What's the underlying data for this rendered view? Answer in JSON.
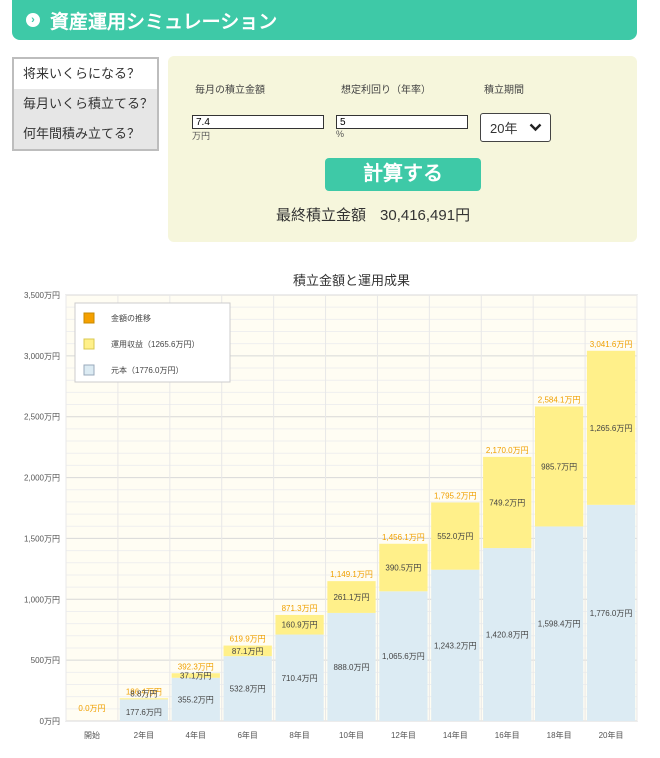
{
  "header": {
    "title": "資産運用シミュレーション"
  },
  "modes": [
    {
      "label": "将来いくらになる？",
      "active": true
    },
    {
      "label": "毎月いくら積立てる？",
      "active": false
    },
    {
      "label": "何年間積み立てる？",
      "active": false
    }
  ],
  "form": {
    "monthly_label": "毎月の積立金額",
    "monthly_value": "7.4",
    "monthly_unit": "万円",
    "rate_label": "想定利回り（年率）",
    "rate_value": "5",
    "rate_unit": "%",
    "period_label": "積立期間",
    "period_value": "20年",
    "calc_label": "計算する",
    "result_label": "最終積立金額",
    "result_value": "30,416,491円"
  },
  "colors": {
    "accent": "#3ec9a7",
    "principal": "#dcebf3",
    "gain": "#fff08a",
    "total_label": "#f0a000",
    "legend_total": "#f5a000"
  },
  "chart_data": {
    "type": "bar",
    "title": "積立金額と運用成果",
    "categories": [
      "開始",
      "2年目",
      "4年目",
      "6年目",
      "8年目",
      "10年目",
      "12年目",
      "14年目",
      "16年目",
      "18年目",
      "20年目"
    ],
    "series": [
      {
        "name": "元本（1776.0万円）",
        "values": [
          0,
          177.6,
          355.2,
          532.8,
          710.4,
          888.0,
          1065.6,
          1243.2,
          1420.8,
          1598.4,
          1776.0
        ],
        "labels": [
          "",
          "177.6万円",
          "355.2万円",
          "532.8万円",
          "710.4万円",
          "888.0万円",
          "1,065.6万円",
          "1,243.2万円",
          "1,420.8万円",
          "1,598.4万円",
          "1,776.0万円"
        ]
      },
      {
        "name": "運用収益（1265.6万円）",
        "values": [
          0,
          8.8,
          37.1,
          87.1,
          160.9,
          261.1,
          390.5,
          552.0,
          749.2,
          985.7,
          1265.6
        ],
        "labels": [
          "",
          "8.8万円",
          "37.1万円",
          "87.1万円",
          "160.9万円",
          "261.1万円",
          "390.5万円",
          "552.0万円",
          "749.2万円",
          "985.7万円",
          "1,265.6万円"
        ]
      }
    ],
    "totals_name": "金額の推移",
    "totals": [
      "0.0万円",
      "186.4万円",
      "392.3万円",
      "619.9万円",
      "871.3万円",
      "1,149.1万円",
      "1,456.1万円",
      "1,795.2万円",
      "2,170.0万円",
      "2,584.1万円",
      "3,041.6万円"
    ],
    "ylim": [
      0,
      3500
    ],
    "yticks": [
      0,
      500,
      1000,
      1500,
      2000,
      2500,
      3000,
      3500
    ],
    "ytick_labels": [
      "0万円",
      "500万円",
      "1,000万円",
      "1,500万円",
      "2,000万円",
      "2,500万円",
      "3,000万円",
      "3,500万円"
    ],
    "grid": true,
    "legend": "top-left"
  }
}
